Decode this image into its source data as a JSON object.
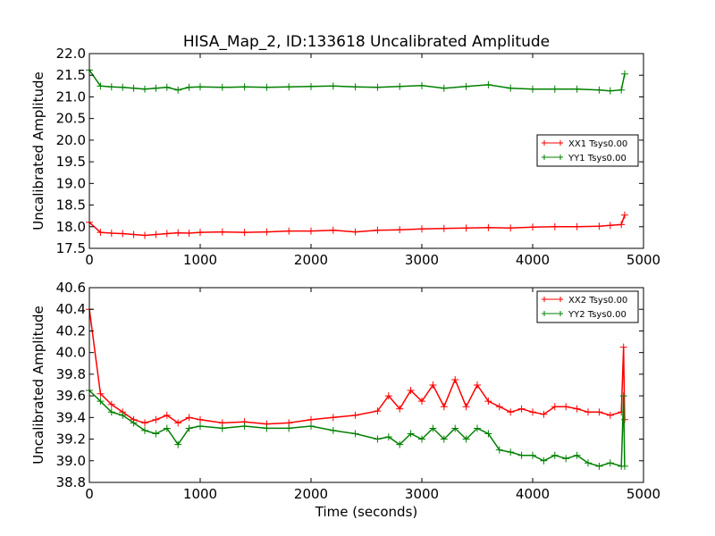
{
  "chart_data": [
    {
      "type": "line",
      "title": "HISA_Map_2, ID:133618 Uncalibrated Amplitude",
      "xlabel": "",
      "ylabel": "Uncalibrated Amplitude",
      "xlim": [
        0,
        5000
      ],
      "ylim": [
        17.5,
        22.0
      ],
      "xticks": [
        "0",
        "1000",
        "2000",
        "3000",
        "4000",
        "5000"
      ],
      "yticks": [
        "17.5",
        "18.0",
        "18.5",
        "19.0",
        "19.5",
        "20.0",
        "20.5",
        "21.0",
        "21.5",
        "22.0"
      ],
      "legend_position": "center-right",
      "grid": false,
      "series": [
        {
          "name": "XX1 Tsys0.00",
          "color": "#ff0000",
          "marker": "plus",
          "x": [
            0,
            100,
            200,
            300,
            400,
            500,
            600,
            700,
            800,
            900,
            1000,
            1200,
            1400,
            1600,
            1800,
            2000,
            2200,
            2400,
            2600,
            2800,
            3000,
            3200,
            3400,
            3600,
            3800,
            4000,
            4200,
            4400,
            4600,
            4700,
            4800,
            4830
          ],
          "y": [
            18.1,
            17.87,
            17.85,
            17.84,
            17.82,
            17.8,
            17.82,
            17.84,
            17.86,
            17.85,
            17.87,
            17.88,
            17.87,
            17.88,
            17.9,
            17.9,
            17.92,
            17.88,
            17.92,
            17.93,
            17.95,
            17.96,
            17.97,
            17.98,
            17.97,
            17.99,
            18.0,
            18.0,
            18.01,
            18.03,
            18.05,
            18.27
          ]
        },
        {
          "name": "YY1 Tsys0.00",
          "color": "#008000",
          "marker": "plus",
          "x": [
            0,
            100,
            200,
            300,
            400,
            500,
            600,
            700,
            800,
            900,
            1000,
            1200,
            1400,
            1600,
            1800,
            2000,
            2200,
            2400,
            2600,
            2800,
            3000,
            3200,
            3400,
            3600,
            3800,
            4000,
            4200,
            4400,
            4600,
            4700,
            4800,
            4830
          ],
          "y": [
            21.62,
            21.25,
            21.23,
            21.22,
            21.2,
            21.18,
            21.2,
            21.22,
            21.16,
            21.22,
            21.23,
            21.22,
            21.23,
            21.22,
            21.23,
            21.24,
            21.25,
            21.23,
            21.22,
            21.24,
            21.26,
            21.2,
            21.24,
            21.28,
            21.2,
            21.18,
            21.18,
            21.18,
            21.16,
            21.14,
            21.16,
            21.53
          ]
        }
      ]
    },
    {
      "type": "line",
      "title": "",
      "xlabel": "Time (seconds)",
      "ylabel": "Uncalibrated Amplitude",
      "xlim": [
        0,
        5000
      ],
      "ylim": [
        38.8,
        40.6
      ],
      "xticks": [
        "0",
        "1000",
        "2000",
        "3000",
        "4000",
        "5000"
      ],
      "yticks": [
        "38.8",
        "39.0",
        "39.2",
        "39.4",
        "39.6",
        "39.8",
        "40.0",
        "40.2",
        "40.4",
        "40.6"
      ],
      "legend_position": "top-right",
      "grid": false,
      "series": [
        {
          "name": "XX2 Tsys0.00",
          "color": "#ff0000",
          "marker": "plus",
          "x": [
            0,
            100,
            200,
            300,
            400,
            500,
            600,
            700,
            800,
            900,
            1000,
            1200,
            1400,
            1600,
            1800,
            2000,
            2200,
            2400,
            2600,
            2700,
            2800,
            2900,
            3000,
            3100,
            3200,
            3300,
            3400,
            3500,
            3600,
            3700,
            3800,
            3900,
            4000,
            4100,
            4200,
            4300,
            4400,
            4500,
            4600,
            4700,
            4800,
            4820,
            4830
          ],
          "y": [
            40.4,
            39.62,
            39.52,
            39.45,
            39.38,
            39.35,
            39.38,
            39.42,
            39.35,
            39.4,
            39.38,
            39.35,
            39.36,
            39.34,
            39.35,
            39.38,
            39.4,
            39.42,
            39.46,
            39.6,
            39.48,
            39.65,
            39.55,
            39.7,
            39.5,
            39.75,
            39.5,
            39.7,
            39.55,
            39.5,
            39.45,
            39.48,
            39.45,
            39.43,
            39.5,
            39.5,
            39.48,
            39.45,
            39.45,
            39.42,
            39.45,
            40.05,
            39.38
          ]
        },
        {
          "name": "YY2 Tsys0.00",
          "color": "#008000",
          "marker": "plus",
          "x": [
            0,
            100,
            200,
            300,
            400,
            500,
            600,
            700,
            800,
            900,
            1000,
            1200,
            1400,
            1600,
            1800,
            2000,
            2200,
            2400,
            2600,
            2700,
            2800,
            2900,
            3000,
            3100,
            3200,
            3300,
            3400,
            3500,
            3600,
            3700,
            3800,
            3900,
            4000,
            4100,
            4200,
            4300,
            4400,
            4500,
            4600,
            4700,
            4800,
            4820,
            4830
          ],
          "y": [
            39.65,
            39.55,
            39.45,
            39.42,
            39.35,
            39.28,
            39.25,
            39.3,
            39.15,
            39.3,
            39.32,
            39.3,
            39.32,
            39.3,
            39.3,
            39.32,
            39.28,
            39.25,
            39.2,
            39.22,
            39.15,
            39.25,
            39.2,
            39.3,
            39.2,
            39.3,
            39.2,
            39.3,
            39.25,
            39.1,
            39.08,
            39.05,
            39.05,
            39.0,
            39.05,
            39.02,
            39.05,
            38.98,
            38.95,
            38.98,
            38.95,
            39.6,
            38.95
          ]
        }
      ]
    }
  ]
}
